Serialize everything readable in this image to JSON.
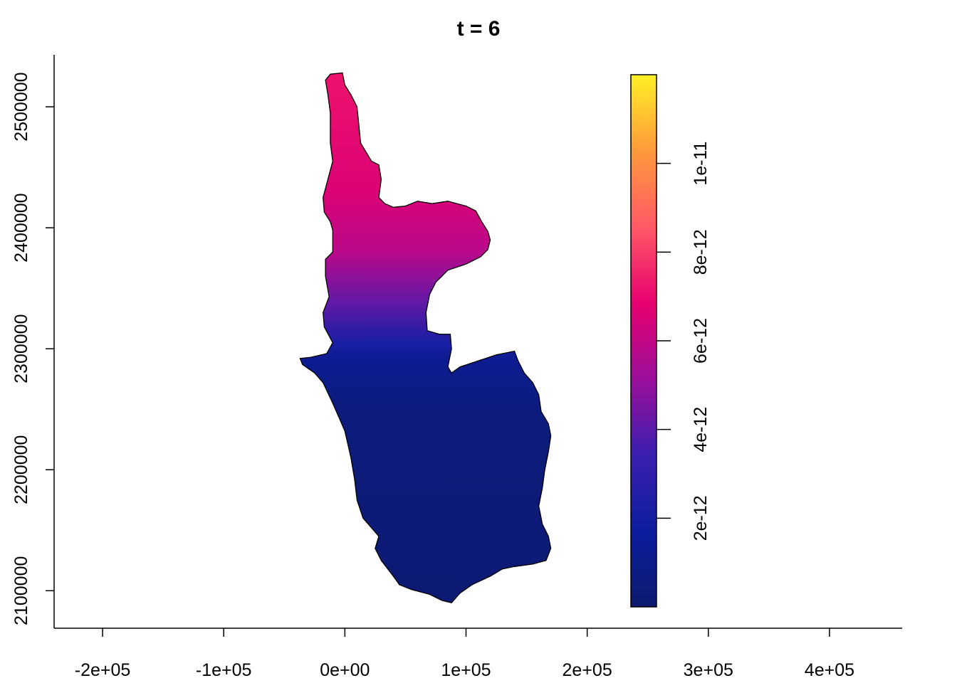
{
  "title": "t = 6",
  "chart_data": {
    "type": "heatmap",
    "title": "t = 6",
    "xlabel": "",
    "ylabel": "",
    "x_ticks": [
      {
        "value": -200000,
        "label": "-2e+05"
      },
      {
        "value": -100000,
        "label": "-1e+05"
      },
      {
        "value": 0,
        "label": "0e+00"
      },
      {
        "value": 100000,
        "label": "1e+05"
      },
      {
        "value": 200000,
        "label": "2e+05"
      },
      {
        "value": 300000,
        "label": "3e+05"
      },
      {
        "value": 400000,
        "label": "4e+05"
      }
    ],
    "y_ticks": [
      {
        "value": 2100000,
        "label": "2100000"
      },
      {
        "value": 2200000,
        "label": "2200000"
      },
      {
        "value": 2300000,
        "label": "2300000"
      },
      {
        "value": 2400000,
        "label": "2400000"
      },
      {
        "value": 2500000,
        "label": "2500000"
      }
    ],
    "xlim": [
      -240000,
      460000
    ],
    "ylim": [
      2069000,
      2543000
    ],
    "colorbar": {
      "range": [
        0,
        1.2e-11
      ],
      "ticks": [
        {
          "value": 2e-12,
          "label": "2e-12"
        },
        {
          "value": 4e-12,
          "label": "4e-12"
        },
        {
          "value": 6e-12,
          "label": "6e-12"
        },
        {
          "value": 8e-12,
          "label": "8e-12"
        },
        {
          "value": 1e-11,
          "label": "1e-11"
        }
      ],
      "colors": [
        "#0d1a6e",
        "#0c1d9e",
        "#3a1fb0",
        "#9b0f9a",
        "#e8006f",
        "#ff5a66",
        "#ff9a3c",
        "#fff026"
      ]
    },
    "region_outline": [
      [
        -12000,
        2527000
      ],
      [
        -2000,
        2528000
      ],
      [
        0,
        2518000
      ],
      [
        5000,
        2510000
      ],
      [
        10000,
        2500000
      ],
      [
        13000,
        2470000
      ],
      [
        22000,
        2455000
      ],
      [
        28000,
        2452000
      ],
      [
        30000,
        2440000
      ],
      [
        28000,
        2425000
      ],
      [
        33000,
        2420000
      ],
      [
        40000,
        2417000
      ],
      [
        50000,
        2418000
      ],
      [
        60000,
        2422000
      ],
      [
        72000,
        2420000
      ],
      [
        85000,
        2422000
      ],
      [
        100000,
        2418000
      ],
      [
        108000,
        2414000
      ],
      [
        113000,
        2405000
      ],
      [
        118000,
        2397000
      ],
      [
        120000,
        2390000
      ],
      [
        118000,
        2382000
      ],
      [
        112000,
        2376000
      ],
      [
        100000,
        2370000
      ],
      [
        85000,
        2365000
      ],
      [
        75000,
        2355000
      ],
      [
        70000,
        2345000
      ],
      [
        67000,
        2330000
      ],
      [
        68000,
        2315000
      ],
      [
        78000,
        2312000
      ],
      [
        87000,
        2312000
      ],
      [
        88000,
        2300000
      ],
      [
        85000,
        2285000
      ],
      [
        88000,
        2280000
      ],
      [
        95000,
        2285000
      ],
      [
        110000,
        2290000
      ],
      [
        125000,
        2295000
      ],
      [
        140000,
        2298000
      ],
      [
        143000,
        2290000
      ],
      [
        148000,
        2280000
      ],
      [
        155000,
        2272000
      ],
      [
        160000,
        2262000
      ],
      [
        162000,
        2248000
      ],
      [
        168000,
        2238000
      ],
      [
        170000,
        2228000
      ],
      [
        168000,
        2215000
      ],
      [
        165000,
        2200000
      ],
      [
        163000,
        2185000
      ],
      [
        160000,
        2170000
      ],
      [
        163000,
        2155000
      ],
      [
        168000,
        2145000
      ],
      [
        170000,
        2135000
      ],
      [
        166000,
        2125000
      ],
      [
        155000,
        2122000
      ],
      [
        140000,
        2120000
      ],
      [
        130000,
        2118000
      ],
      [
        120000,
        2112000
      ],
      [
        105000,
        2105000
      ],
      [
        95000,
        2098000
      ],
      [
        88000,
        2090000
      ],
      [
        80000,
        2092000
      ],
      [
        70000,
        2097000
      ],
      [
        55000,
        2101000
      ],
      [
        45000,
        2105000
      ],
      [
        40000,
        2112000
      ],
      [
        30000,
        2125000
      ],
      [
        25000,
        2135000
      ],
      [
        28000,
        2145000
      ],
      [
        22000,
        2152000
      ],
      [
        15000,
        2160000
      ],
      [
        10000,
        2175000
      ],
      [
        8000,
        2192000
      ],
      [
        5000,
        2210000
      ],
      [
        0,
        2232000
      ],
      [
        -10000,
        2255000
      ],
      [
        -18000,
        2272000
      ],
      [
        -25000,
        2280000
      ],
      [
        -35000,
        2287000
      ],
      [
        -37000,
        2292000
      ],
      [
        -28000,
        2293000
      ],
      [
        -15000,
        2296000
      ],
      [
        -10000,
        2305000
      ],
      [
        -17000,
        2318000
      ],
      [
        -18000,
        2330000
      ],
      [
        -13000,
        2343000
      ],
      [
        -16000,
        2360000
      ],
      [
        -16000,
        2374000
      ],
      [
        -10000,
        2380000
      ],
      [
        -10000,
        2398000
      ],
      [
        -12000,
        2405000
      ],
      [
        -17000,
        2413000
      ],
      [
        -18000,
        2425000
      ],
      [
        -14000,
        2440000
      ],
      [
        -10000,
        2455000
      ],
      [
        -12000,
        2470000
      ],
      [
        -12000,
        2495000
      ],
      [
        -14000,
        2510000
      ],
      [
        -16000,
        2522000
      ],
      [
        -12000,
        2527000
      ]
    ],
    "value_profile": [
      {
        "y": 2100000,
        "value": 2e-13
      },
      {
        "y": 2240000,
        "value": 5e-13
      },
      {
        "y": 2290000,
        "value": 1.2e-12
      },
      {
        "y": 2305000,
        "value": 2.2e-12
      },
      {
        "y": 2340000,
        "value": 4.2e-12
      },
      {
        "y": 2380000,
        "value": 5.8e-12
      },
      {
        "y": 2430000,
        "value": 6.6e-12
      },
      {
        "y": 2525000,
        "value": 7.2e-12
      }
    ]
  }
}
